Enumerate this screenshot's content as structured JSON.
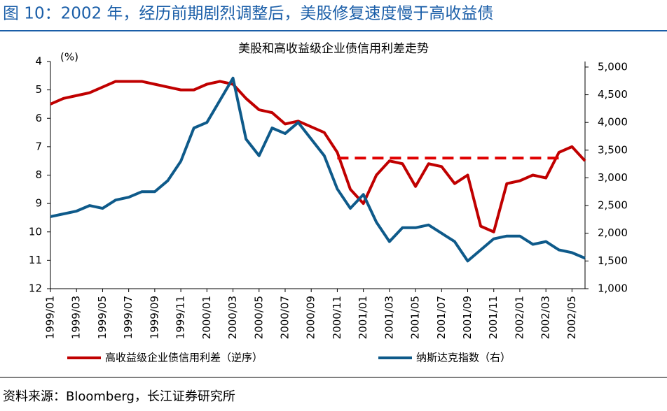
{
  "header": {
    "title": "图 10：2002 年，经历前期剧烈调整后，美股修复速度慢于高收益债"
  },
  "chart_data": {
    "type": "line",
    "title": "美股和高收益级企业债信用利差走势",
    "y_unit": "(%)",
    "categories": [
      "1999/01",
      null,
      "1999/03",
      null,
      "1999/05",
      null,
      "1999/07",
      null,
      "1999/09",
      null,
      "1999/11",
      null,
      "2000/01",
      null,
      "2000/03",
      null,
      "2000/05",
      null,
      "2000/07",
      null,
      "2000/09",
      null,
      "2000/11",
      null,
      "2001/01",
      null,
      "2001/03",
      null,
      "2001/05",
      null,
      "2001/07",
      null,
      "2001/09",
      null,
      "2001/11",
      null,
      "2002/01",
      null,
      "2002/03",
      null,
      "2002/05",
      null
    ],
    "series": [
      {
        "name": "高收益级企业债信用利差（逆序）",
        "color": "#c00000",
        "values": [
          5.5,
          5.3,
          5.2,
          5.1,
          4.9,
          4.7,
          4.7,
          4.7,
          4.8,
          4.9,
          5.0,
          5.0,
          4.8,
          4.7,
          4.8,
          5.3,
          5.7,
          5.8,
          6.2,
          6.1,
          6.3,
          6.5,
          7.2,
          8.5,
          9.0,
          8.0,
          7.5,
          7.6,
          8.4,
          7.6,
          7.7,
          8.3,
          8.0,
          9.8,
          10.0,
          8.3,
          8.2,
          8.0,
          8.1,
          7.2,
          7.0,
          7.5
        ]
      },
      {
        "name": "纳斯达克指数（右）",
        "color": "#0e5a8a",
        "axis": "y2",
        "values": [
          2300,
          2350,
          2400,
          2500,
          2450,
          2600,
          2650,
          2750,
          2750,
          2950,
          3300,
          3900,
          4000,
          4400,
          4800,
          3700,
          3400,
          3900,
          3800,
          4000,
          3700,
          3400,
          2800,
          2450,
          2700,
          2200,
          1850,
          2100,
          2100,
          2150,
          2000,
          1850,
          1500,
          1700,
          1900,
          1950,
          1950,
          1800,
          1850,
          1700,
          1650,
          1550
        ]
      }
    ],
    "reference_line": {
      "value": 7.4,
      "start": "2000/11",
      "end": "2002/04",
      "color": "#e00000"
    },
    "ylim": [
      4,
      12
    ],
    "y_inverted": true,
    "yticks": [
      4,
      5,
      6,
      7,
      8,
      9,
      10,
      11,
      12
    ],
    "y2lim": [
      1000,
      5100
    ],
    "y2ticks": [
      {
        "value": 1000,
        "label": "1,000"
      },
      {
        "value": 1500,
        "label": "1,500"
      },
      {
        "value": 2000,
        "label": "2,000"
      },
      {
        "value": 2500,
        "label": "2,500"
      },
      {
        "value": 3000,
        "label": "3,000"
      },
      {
        "value": 3500,
        "label": "3,500"
      },
      {
        "value": 4000,
        "label": "4,000"
      },
      {
        "value": 4500,
        "label": "4,500"
      },
      {
        "value": 5000,
        "label": "5,000"
      }
    ]
  },
  "footer": {
    "source": "资料来源：Bloomberg，长江证券研究所"
  }
}
